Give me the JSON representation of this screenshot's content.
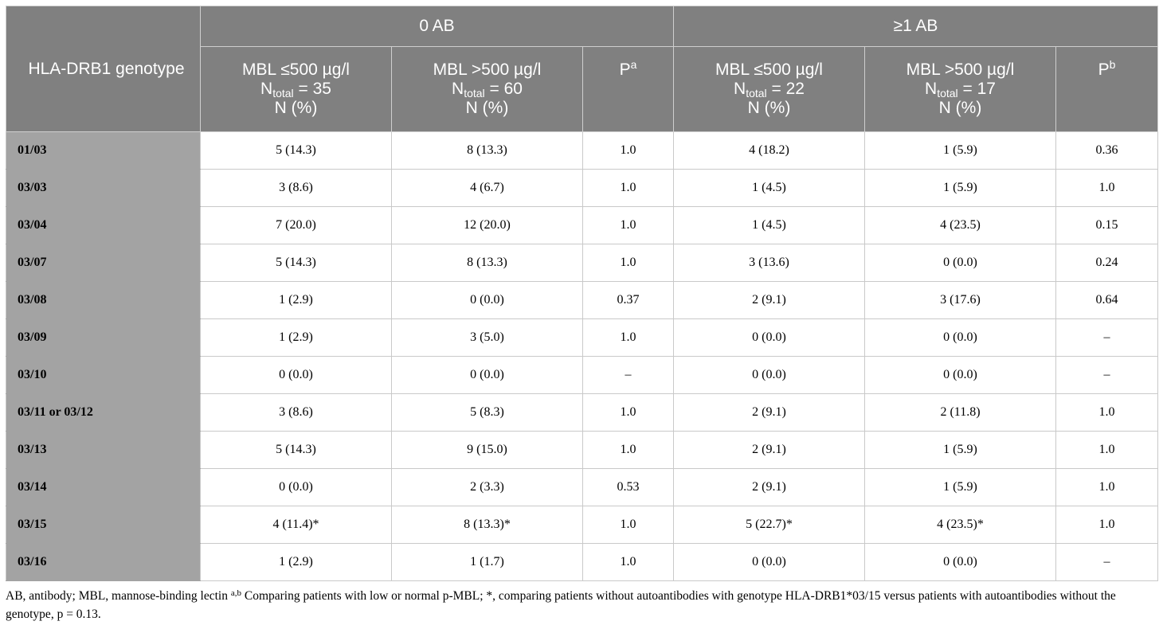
{
  "header": {
    "row_label": "HLA-DRB1 genotype",
    "group1": "0 AB",
    "group2": "≥1 AB",
    "col_low_1": {
      "line1": "MBL ≤500 µg/l",
      "n_prefix": "N",
      "n_sub": "total",
      "n_suffix": " = 35",
      "line3": "N (%)"
    },
    "col_high_1": {
      "line1": "MBL >500 µg/l",
      "n_prefix": "N",
      "n_sub": "total",
      "n_suffix": " = 60",
      "line3": "N (%)"
    },
    "p1": {
      "base": "P",
      "sup": "a"
    },
    "col_low_2": {
      "line1": "MBL ≤500 µg/l",
      "n_prefix": "N",
      "n_sub": "total",
      "n_suffix": " = 22",
      "line3": "N (%)"
    },
    "col_high_2": {
      "line1": "MBL >500 µg/l",
      "n_prefix": "N",
      "n_sub": "total",
      "n_suffix": " = 17",
      "line3": "N (%)"
    },
    "p2": {
      "base": "P",
      "sup": "b"
    }
  },
  "rows": [
    {
      "genotype": "01/03",
      "c1": "5 (14.3)",
      "c2": "8 (13.3)",
      "p1": "1.0",
      "c3": "4 (18.2)",
      "c4": "1 (5.9)",
      "p2": "0.36"
    },
    {
      "genotype": "03/03",
      "c1": "3 (8.6)",
      "c2": "4 (6.7)",
      "p1": "1.0",
      "c3": "1 (4.5)",
      "c4": "1 (5.9)",
      "p2": "1.0"
    },
    {
      "genotype": "03/04",
      "c1": "7 (20.0)",
      "c2": "12 (20.0)",
      "p1": "1.0",
      "c3": "1 (4.5)",
      "c4": "4 (23.5)",
      "p2": "0.15"
    },
    {
      "genotype": "03/07",
      "c1": "5 (14.3)",
      "c2": "8 (13.3)",
      "p1": "1.0",
      "c3": "3 (13.6)",
      "c4": "0 (0.0)",
      "p2": "0.24"
    },
    {
      "genotype": "03/08",
      "c1": "1 (2.9)",
      "c2": "0 (0.0)",
      "p1": "0.37",
      "c3": "2 (9.1)",
      "c4": "3 (17.6)",
      "p2": "0.64"
    },
    {
      "genotype": "03/09",
      "c1": "1 (2.9)",
      "c2": "3 (5.0)",
      "p1": "1.0",
      "c3": "0 (0.0)",
      "c4": "0 (0.0)",
      "p2": "–"
    },
    {
      "genotype": "03/10",
      "c1": "0 (0.0)",
      "c2": "0 (0.0)",
      "p1": "–",
      "c3": "0 (0.0)",
      "c4": "0 (0.0)",
      "p2": "–"
    },
    {
      "genotype": "03/11 or 03/12",
      "c1": "3 (8.6)",
      "c2": "5 (8.3)",
      "p1": "1.0",
      "c3": "2 (9.1)",
      "c4": "2 (11.8)",
      "p2": "1.0"
    },
    {
      "genotype": "03/13",
      "c1": "5 (14.3)",
      "c2": "9 (15.0)",
      "p1": "1.0",
      "c3": "2 (9.1)",
      "c4": "1 (5.9)",
      "p2": "1.0"
    },
    {
      "genotype": "03/14",
      "c1": "0 (0.0)",
      "c2": "2 (3.3)",
      "p1": "0.53",
      "c3": "2 (9.1)",
      "c4": "1 (5.9)",
      "p2": "1.0"
    },
    {
      "genotype": "03/15",
      "c1": "4 (11.4)*",
      "c2": "8 (13.3)*",
      "p1": "1.0",
      "c3": "5 (22.7)*",
      "c4": "4 (23.5)*",
      "p2": "1.0"
    },
    {
      "genotype": "03/16",
      "c1": "1 (2.9)",
      "c2": "1 (1.7)",
      "p1": "1.0",
      "c3": "0 (0.0)",
      "c4": "0 (0.0)",
      "p2": "–"
    }
  ],
  "footnote": {
    "part1": "AB, antibody; MBL, mannose-binding lectin ",
    "sup": "a,b",
    "part2": " Comparing patients with low or normal p-MBL; *, comparing patients without autoantibodies with genotype HLA-DRB1*03/15 versus patients with autoantibodies without the genotype, p = 0.13."
  }
}
